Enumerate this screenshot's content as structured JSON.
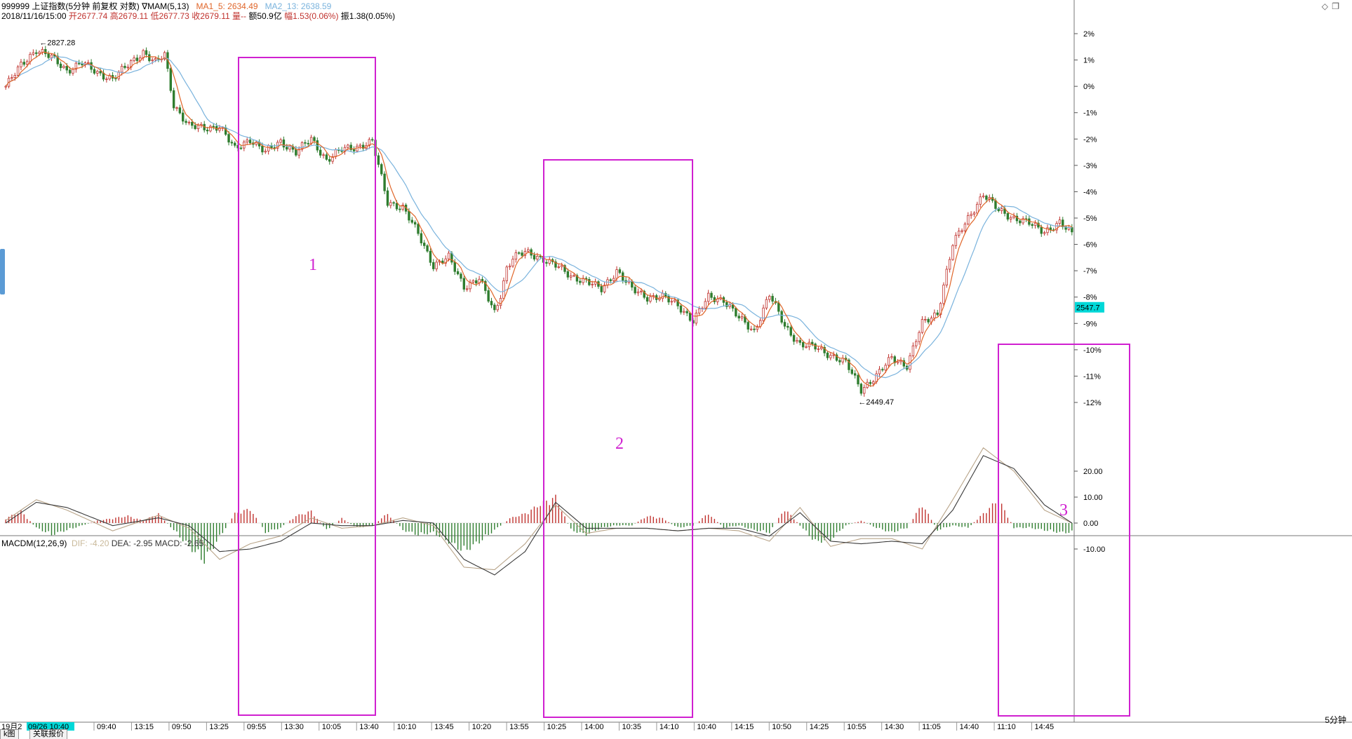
{
  "header": {
    "title_code": "999999",
    "title_name": "上证指数(5分钟 前复权 对数)",
    "indicator_name": "∇MAM(5,13)",
    "ma1_label": "MA1_5: 2634.49",
    "ma2_label": "MA2_13: 2638.59",
    "datetime": "2018/11/16/15:00",
    "open_label": "开2677.74",
    "high_label": "高2679.11",
    "low_label": "低2677.73",
    "close_label": "收2679.11",
    "vol_label": "量--",
    "amount_label": "额50.9亿",
    "change_label": "幅1.53(0.06%)",
    "amplitude_label": "振1.38(0.05%)"
  },
  "macd_header": {
    "name": "MACDM(12,26,9)",
    "dif_label": "DIF: -4.20",
    "dea_label": "DEA: -2.95",
    "macd_label": "MACD: -2.65"
  },
  "colors": {
    "up": "#c0322e",
    "down": "#2f7d2f",
    "ma1": "#e0662a",
    "ma2": "#7ab3dd",
    "box": "#d020d0",
    "dif": "#b9a58a",
    "dea": "#3a3a3a",
    "price_tag_bg": "#00d8d8",
    "frame": "#777777"
  },
  "icons": {
    "diamond": "◇",
    "window": "❐"
  },
  "annotations": {
    "box1_label": "1",
    "box2_label": "2",
    "box3_label": "3"
  },
  "bottom": {
    "tab1": "k图",
    "tab2": "关联报价",
    "date_start": "19月2",
    "date_highlight": "09/26 10:40",
    "timeframe": "5分钟"
  },
  "chart_data": [
    {
      "type": "candlestick",
      "title": "999999 上证指数(5分钟 前复权 对数)",
      "y_axis": "percent",
      "ylim": [
        -12.5,
        2.5
      ],
      "ytick_labels": [
        "2%",
        "1%",
        "0%",
        "-1%",
        "-2%",
        "-3%",
        "-4%",
        "-5%",
        "-6%",
        "-7%",
        "-8%",
        "-9%",
        "-10%",
        "-11%",
        "-12%"
      ],
      "ytick_values": [
        2,
        1,
        0,
        -1,
        -2,
        -3,
        -4,
        -5,
        -6,
        -7,
        -8,
        -9,
        -10,
        -11,
        -12
      ],
      "x_tick_labels": [
        "09:40",
        "13:15",
        "09:50",
        "13:25",
        "09:55",
        "13:30",
        "10:05",
        "13:40",
        "10:10",
        "13:45",
        "10:20",
        "13:55",
        "10:25",
        "14:00",
        "10:35",
        "14:10",
        "10:40",
        "14:15",
        "10:50",
        "14:25",
        "10:55",
        "14:30",
        "11:05",
        "14:40",
        "11:10",
        "14:45"
      ],
      "path_anchors_x": [
        0,
        5,
        10,
        15,
        20,
        25,
        30,
        35,
        40,
        45,
        47,
        49,
        52,
        55,
        60,
        65,
        70,
        75,
        80,
        85,
        90,
        95,
        100,
        105,
        110,
        115,
        120,
        125,
        130,
        135,
        140,
        145,
        150,
        155,
        160,
        162,
        164,
        166,
        168,
        170,
        175,
        180,
        185,
        190,
        195,
        200,
        205,
        210,
        215,
        220,
        225,
        230,
        235,
        240,
        245,
        250,
        255,
        260,
        265,
        270,
        275,
        280,
        285,
        290,
        295,
        300,
        305,
        310,
        315,
        320,
        325,
        330,
        335,
        340,
        345,
        349
      ],
      "path_anchors_y": [
        0.0,
        0.8,
        1.4,
        1.1,
        0.6,
        0.9,
        0.5,
        0.3,
        0.8,
        1.3,
        1.1,
        0.9,
        1.2,
        -0.7,
        -1.5,
        -1.6,
        -1.5,
        -2.4,
        -2.0,
        -2.5,
        -2.1,
        -2.5,
        -2.0,
        -2.8,
        -2.4,
        -2.3,
        -2.1,
        -4.4,
        -4.6,
        -5.6,
        -6.8,
        -6.5,
        -7.6,
        -7.3,
        -8.6,
        -7.9,
        -6.9,
        -6.5,
        -6.4,
        -6.3,
        -6.5,
        -6.8,
        -7.2,
        -7.4,
        -7.7,
        -7.0,
        -7.7,
        -8.0,
        -8.0,
        -8.3,
        -8.9,
        -8.0,
        -8.1,
        -8.8,
        -9.3,
        -7.9,
        -9.1,
        -9.8,
        -9.9,
        -10.2,
        -10.5,
        -11.5,
        -11.0,
        -10.3,
        -10.6,
        -9.0,
        -8.6,
        -6.0,
        -5.0,
        -4.1,
        -4.7,
        -5.0,
        -5.2,
        -5.5,
        -5.2,
        -5.6
      ],
      "annotations": [
        {
          "text": "2827.28",
          "type": "high_marker"
        },
        {
          "text": "2449.47",
          "type": "low_marker"
        }
      ],
      "last_price_label": "2547.7",
      "last_price_pct": -8.4
    },
    {
      "type": "bar",
      "title": "MACDM(12,26,9)",
      "ylim": [
        -15,
        28
      ],
      "ytick_labels": [
        "20.00",
        "10.00",
        "0.00",
        "-10.00"
      ],
      "ytick_values": [
        20,
        10,
        0,
        -10
      ],
      "series": [
        {
          "name": "DIF",
          "anchors_x": [
            0,
            10,
            20,
            35,
            50,
            60,
            70,
            80,
            90,
            100,
            110,
            120,
            130,
            140,
            150,
            160,
            170,
            180,
            190,
            200,
            210,
            220,
            230,
            240,
            250,
            260,
            270,
            280,
            290,
            300,
            310,
            320,
            330,
            340,
            349
          ],
          "anchors_y": [
            1,
            9,
            5,
            -3,
            3,
            -2,
            -14,
            -8,
            -5,
            2,
            -2,
            -1,
            2,
            -1,
            -17,
            -18,
            -8,
            7,
            -4,
            -2,
            -2,
            -3,
            -2,
            -3,
            -7,
            6,
            -9,
            -6,
            -6,
            -10,
            9,
            29,
            20,
            5,
            0
          ]
        },
        {
          "name": "DEA",
          "anchors_x": [
            0,
            10,
            20,
            35,
            50,
            60,
            70,
            80,
            90,
            100,
            110,
            120,
            130,
            140,
            150,
            160,
            170,
            180,
            190,
            200,
            210,
            220,
            230,
            240,
            250,
            260,
            270,
            280,
            290,
            300,
            310,
            320,
            330,
            340,
            349
          ],
          "anchors_y": [
            0,
            8,
            6,
            -1,
            2,
            -1,
            -11,
            -10,
            -7,
            0,
            -1,
            -1,
            1,
            0,
            -14,
            -20,
            -11,
            8,
            -2,
            -2,
            -2,
            -3,
            -2,
            -2,
            -5,
            4,
            -7,
            -8,
            -7,
            -8,
            5,
            26,
            21,
            7,
            0
          ]
        },
        {
          "name": "MACD",
          "anchors_x": [
            0,
            5,
            10,
            15,
            20,
            25,
            30,
            35,
            40,
            45,
            50,
            55,
            60,
            65,
            70,
            75,
            80,
            85,
            90,
            95,
            100,
            105,
            110,
            115,
            120,
            125,
            130,
            135,
            140,
            145,
            150,
            155,
            160,
            165,
            170,
            175,
            180,
            185,
            190,
            195,
            200,
            205,
            210,
            215,
            220,
            225,
            230,
            235,
            240,
            245,
            250,
            255,
            260,
            265,
            270,
            275,
            280,
            285,
            290,
            295,
            300,
            305,
            310,
            315,
            320,
            325,
            330,
            335,
            340,
            345,
            349
          ],
          "anchors_y": [
            2,
            5,
            -2,
            -5,
            -3,
            -1,
            1,
            2,
            3,
            1,
            4,
            -3,
            -10,
            -16,
            -6,
            4,
            6,
            -4,
            -2,
            3,
            5,
            -3,
            2,
            -2,
            -1,
            4,
            -3,
            -5,
            -4,
            -8,
            -12,
            -8,
            -3,
            2,
            4,
            8,
            11,
            -3,
            -5,
            -2,
            -1,
            -1,
            3,
            2,
            -2,
            -1,
            4,
            -2,
            -1,
            -3,
            -4,
            6,
            -1,
            -8,
            -7,
            -1,
            1,
            -2,
            -4,
            -2,
            8,
            -3,
            -1,
            -2,
            4,
            10,
            -2,
            -2,
            -3,
            -4,
            -4
          ]
        }
      ]
    }
  ]
}
